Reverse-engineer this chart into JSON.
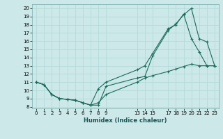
{
  "xlabel": "Humidex (Indice chaleur)",
  "bg_color": "#cce8e8",
  "grid_color": "#b0d8d8",
  "line_color": "#1a6b5a",
  "xlim": [
    -0.5,
    23.5
  ],
  "ylim": [
    7.8,
    20.5
  ],
  "xticks": [
    0,
    1,
    2,
    3,
    4,
    5,
    6,
    7,
    8,
    9,
    13,
    14,
    15,
    17,
    18,
    19,
    20,
    21,
    22,
    23
  ],
  "yticks": [
    8,
    9,
    10,
    11,
    12,
    13,
    14,
    15,
    16,
    17,
    18,
    19,
    20
  ],
  "line1_x": [
    0,
    1,
    2,
    3,
    4,
    5,
    6,
    7,
    8,
    9,
    13,
    14,
    15,
    17,
    18,
    19,
    20,
    21,
    22,
    23
  ],
  "line1_y": [
    11.0,
    10.7,
    9.5,
    9.0,
    8.9,
    8.8,
    8.5,
    8.2,
    8.2,
    10.5,
    11.5,
    11.7,
    14.2,
    17.3,
    18.1,
    19.2,
    20.0,
    16.3,
    15.9,
    13.0
  ],
  "line2_x": [
    0,
    1,
    2,
    3,
    4,
    5,
    6,
    7,
    8,
    9,
    13,
    14,
    15,
    17,
    18,
    19,
    20,
    21,
    22,
    23
  ],
  "line2_y": [
    11.0,
    10.7,
    9.5,
    9.0,
    8.9,
    8.8,
    8.5,
    8.2,
    10.2,
    11.0,
    12.5,
    13.0,
    14.5,
    17.5,
    18.0,
    19.3,
    16.3,
    14.7,
    13.0,
    13.0
  ],
  "line3_x": [
    0,
    1,
    2,
    3,
    4,
    5,
    6,
    7,
    8,
    9,
    13,
    14,
    15,
    17,
    18,
    19,
    20,
    21,
    22,
    23
  ],
  "line3_y": [
    11.0,
    10.7,
    9.5,
    9.0,
    8.9,
    8.8,
    8.5,
    8.2,
    8.5,
    9.5,
    11.0,
    11.5,
    11.8,
    12.3,
    12.6,
    12.9,
    13.2,
    13.0,
    13.0,
    13.0
  ]
}
